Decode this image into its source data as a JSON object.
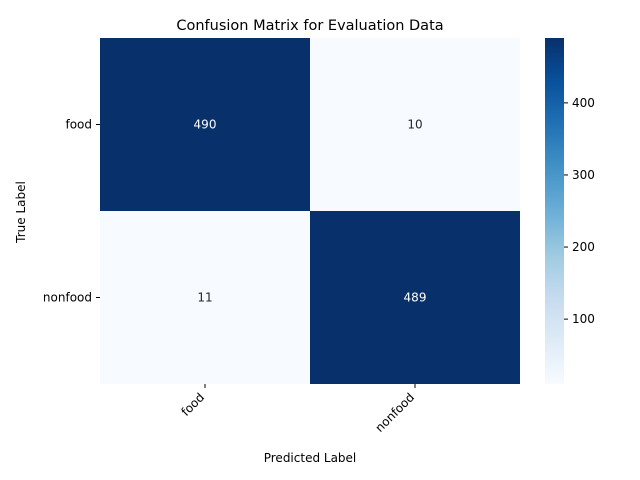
{
  "chart_data": {
    "type": "heatmap",
    "title": "Confusion Matrix for Evaluation Data",
    "xlabel": "Predicted Label",
    "ylabel": "True Label",
    "x_categories": [
      "food",
      "nonfood"
    ],
    "y_categories": [
      "food",
      "nonfood"
    ],
    "values": [
      [
        490,
        10
      ],
      [
        11,
        489
      ]
    ],
    "colormap": "Blues",
    "color_low": "#f7fbff",
    "color_high": "#08306b",
    "colorbar": {
      "range": [
        10,
        490
      ],
      "ticks": [
        100,
        200,
        300,
        400
      ]
    }
  }
}
